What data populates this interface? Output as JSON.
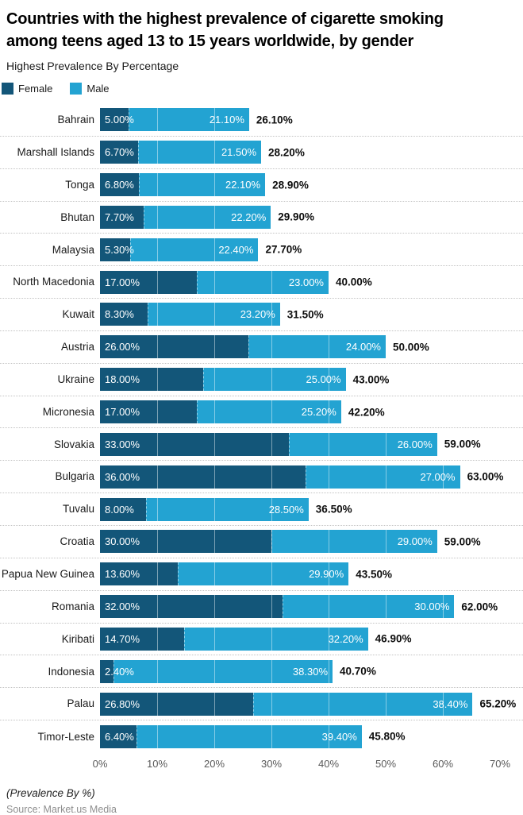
{
  "title_line1": "Countries with the highest prevalence of cigarette smoking",
  "title_line2": "among teens aged 13 to 15 years worldwide, by gender",
  "subtitle": "Highest Prevalence By Percentage",
  "legend": [
    {
      "label": "Female",
      "color": "#135679"
    },
    {
      "label": "Male",
      "color": "#23A3D2"
    }
  ],
  "footer": {
    "note": "(Prevalence By %)",
    "source": "Source: Market.us Media"
  },
  "chart_data": {
    "type": "bar",
    "orientation": "horizontal",
    "stacked": true,
    "title": "Countries with the highest prevalence of cigarette smoking among teens aged 13 to 15 years worldwide, by gender",
    "xlabel": "(Prevalence By %)",
    "ylabel": "",
    "xlim": [
      0,
      70
    ],
    "x_ticks": [
      "0%",
      "10%",
      "20%",
      "30%",
      "40%",
      "50%",
      "60%",
      "70%"
    ],
    "grid": "vertical-white-over-bars",
    "legend_position": "top-left",
    "categories": [
      "Bahrain",
      "Marshall Islands",
      "Tonga",
      "Bhutan",
      "Malaysia",
      "North Macedonia",
      "Kuwait",
      "Austria",
      "Ukraine",
      "Micronesia",
      "Slovakia",
      "Bulgaria",
      "Tuvalu",
      "Croatia",
      "Papua New Guinea",
      "Romania",
      "Kiribati",
      "Indonesia",
      "Palau",
      "Timor-Leste"
    ],
    "series": [
      {
        "name": "Female",
        "color": "#135679",
        "values": [
          5.0,
          6.7,
          6.8,
          7.7,
          5.3,
          17.0,
          8.3,
          26.0,
          18.0,
          17.0,
          33.0,
          36.0,
          8.0,
          30.0,
          13.6,
          32.0,
          14.7,
          2.4,
          26.8,
          6.4
        ]
      },
      {
        "name": "Male",
        "color": "#23A3D2",
        "values": [
          21.1,
          21.5,
          22.1,
          22.2,
          22.4,
          23.0,
          23.2,
          24.0,
          25.0,
          25.2,
          26.0,
          27.0,
          28.5,
          29.0,
          29.9,
          30.0,
          32.2,
          38.3,
          38.4,
          39.4
        ]
      }
    ],
    "totals": [
      26.1,
      28.2,
      28.9,
      29.9,
      27.7,
      40.0,
      31.5,
      50.0,
      43.0,
      42.2,
      59.0,
      63.0,
      36.5,
      59.0,
      43.5,
      62.0,
      46.9,
      40.7,
      65.2,
      45.8
    ],
    "rows": [
      {
        "country": "Bahrain",
        "female": 5.0,
        "male": 21.1,
        "total": 26.1,
        "female_label": "5.00%",
        "male_label": "21.10%",
        "total_label": "26.10%"
      },
      {
        "country": "Marshall Islands",
        "female": 6.7,
        "male": 21.5,
        "total": 28.2,
        "female_label": "6.70%",
        "male_label": "21.50%",
        "total_label": "28.20%"
      },
      {
        "country": "Tonga",
        "female": 6.8,
        "male": 22.1,
        "total": 28.9,
        "female_label": "6.80%",
        "male_label": "22.10%",
        "total_label": "28.90%"
      },
      {
        "country": "Bhutan",
        "female": 7.7,
        "male": 22.2,
        "total": 29.9,
        "female_label": "7.70%",
        "male_label": "22.20%",
        "total_label": "29.90%"
      },
      {
        "country": "Malaysia",
        "female": 5.3,
        "male": 22.4,
        "total": 27.7,
        "female_label": "5.30%",
        "male_label": "22.40%",
        "total_label": "27.70%"
      },
      {
        "country": "North Macedonia",
        "female": 17.0,
        "male": 23.0,
        "total": 40.0,
        "female_label": "17.00%",
        "male_label": "23.00%",
        "total_label": "40.00%"
      },
      {
        "country": "Kuwait",
        "female": 8.3,
        "male": 23.2,
        "total": 31.5,
        "female_label": "8.30%",
        "male_label": "23.20%",
        "total_label": "31.50%"
      },
      {
        "country": "Austria",
        "female": 26.0,
        "male": 24.0,
        "total": 50.0,
        "female_label": "26.00%",
        "male_label": "24.00%",
        "total_label": "50.00%"
      },
      {
        "country": "Ukraine",
        "female": 18.0,
        "male": 25.0,
        "total": 43.0,
        "female_label": "18.00%",
        "male_label": "25.00%",
        "total_label": "43.00%"
      },
      {
        "country": "Micronesia",
        "female": 17.0,
        "male": 25.2,
        "total": 42.2,
        "female_label": "17.00%",
        "male_label": "25.20%",
        "total_label": "42.20%"
      },
      {
        "country": "Slovakia",
        "female": 33.0,
        "male": 26.0,
        "total": 59.0,
        "female_label": "33.00%",
        "male_label": "26.00%",
        "total_label": "59.00%"
      },
      {
        "country": "Bulgaria",
        "female": 36.0,
        "male": 27.0,
        "total": 63.0,
        "female_label": "36.00%",
        "male_label": "27.00%",
        "total_label": "63.00%"
      },
      {
        "country": "Tuvalu",
        "female": 8.0,
        "male": 28.5,
        "total": 36.5,
        "female_label": "8.00%",
        "male_label": "28.50%",
        "total_label": "36.50%"
      },
      {
        "country": "Croatia",
        "female": 30.0,
        "male": 29.0,
        "total": 59.0,
        "female_label": "30.00%",
        "male_label": "29.00%",
        "total_label": "59.00%"
      },
      {
        "country": "Papua New Guinea",
        "female": 13.6,
        "male": 29.9,
        "total": 43.5,
        "female_label": "13.60%",
        "male_label": "29.90%",
        "total_label": "43.50%"
      },
      {
        "country": "Romania",
        "female": 32.0,
        "male": 30.0,
        "total": 62.0,
        "female_label": "32.00%",
        "male_label": "30.00%",
        "total_label": "62.00%"
      },
      {
        "country": "Kiribati",
        "female": 14.7,
        "male": 32.2,
        "total": 46.9,
        "female_label": "14.70%",
        "male_label": "32.20%",
        "total_label": "46.90%"
      },
      {
        "country": "Indonesia",
        "female": 2.4,
        "male": 38.3,
        "total": 40.7,
        "female_label": "2.40%",
        "male_label": "38.30%",
        "total_label": "40.70%"
      },
      {
        "country": "Palau",
        "female": 26.8,
        "male": 38.4,
        "total": 65.2,
        "female_label": "26.80%",
        "male_label": "38.40%",
        "total_label": "65.20%"
      },
      {
        "country": "Timor-Leste",
        "female": 6.4,
        "male": 39.4,
        "total": 45.8,
        "female_label": "6.40%",
        "male_label": "39.40%",
        "total_label": "45.80%"
      }
    ]
  }
}
